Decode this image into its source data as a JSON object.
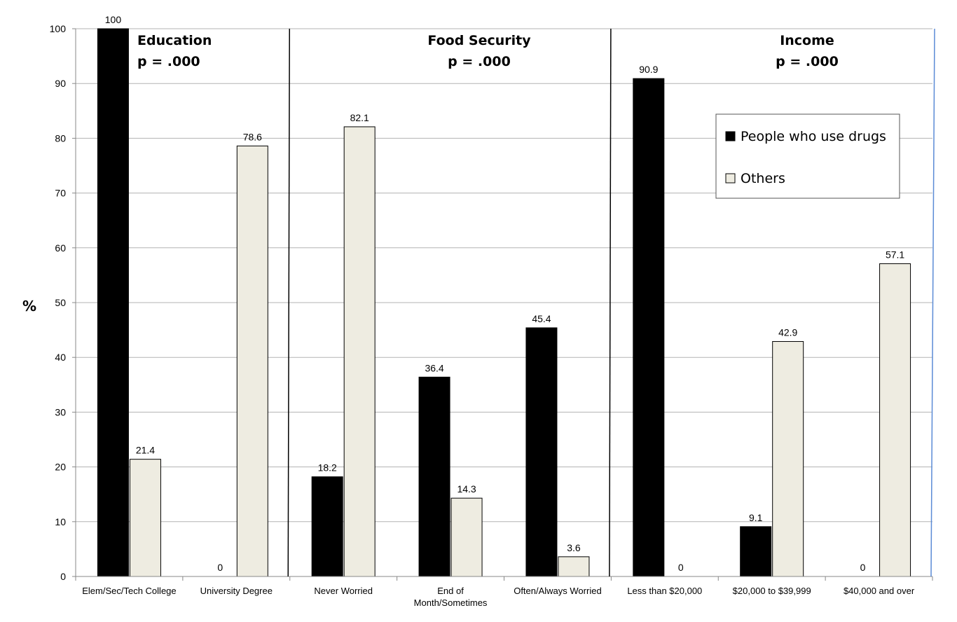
{
  "chart_data": {
    "type": "bar",
    "ylabel": "%",
    "ylim": [
      0,
      100
    ],
    "yticks": [
      0,
      10,
      20,
      30,
      40,
      50,
      60,
      70,
      80,
      90,
      100
    ],
    "grid": "horizontal",
    "legend_placement": "upper-right",
    "categories": [
      [
        "Elem/Sec/Tech College"
      ],
      [
        "University Degree"
      ],
      [
        "Never Worried"
      ],
      [
        "End of",
        "Month/Sometimes"
      ],
      [
        "Often/Always Worried"
      ],
      [
        "Less than $20,000"
      ],
      [
        "$20,000 to $39,999"
      ],
      [
        "$40,000 and over"
      ]
    ],
    "series": [
      {
        "name": "People who use drugs",
        "color": "#000000",
        "values": [
          100,
          0,
          18.2,
          36.4,
          45.4,
          90.9,
          9.1,
          0
        ],
        "labels": [
          "100",
          "0",
          "18.2",
          "36.4",
          "45.4",
          "90.9",
          "9.1",
          "0"
        ]
      },
      {
        "name": "Others",
        "color": "#eeece1",
        "values": [
          21.4,
          78.6,
          82.1,
          14.3,
          3.6,
          0,
          42.9,
          57.1
        ],
        "labels": [
          "21.4",
          "78.6",
          "82.1",
          "14.3",
          "3.6",
          "0",
          "42.9",
          "57.1"
        ]
      }
    ],
    "sections": [
      {
        "title": "Education",
        "subtitle": "p = .000",
        "start": 0,
        "end": 1
      },
      {
        "title": "Food Security",
        "subtitle": "p = .000",
        "start": 2,
        "end": 4
      },
      {
        "title": "Income",
        "subtitle": "p = .000",
        "start": 5,
        "end": 7
      }
    ]
  }
}
